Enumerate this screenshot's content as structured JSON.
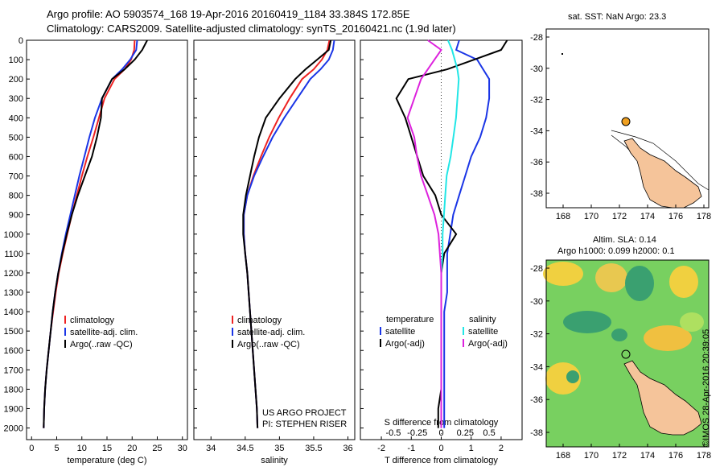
{
  "header": {
    "line1": "Argo profile: AO 5903574_168 19-Apr-2016 20160419_1184 33.384S 172.85E",
    "line2": "Climatology: CARS2009. Satellite-adjusted climatology: synTS_20160421.nc (1.9d later)"
  },
  "colors": {
    "climatology": "#ee2222",
    "satellite": "#1a35e6",
    "argo": "#000000",
    "sal_satellite": "#22e6e6",
    "sal_argo": "#dd22dd",
    "land": "#f5c49a",
    "float_marker": "#f0a020"
  },
  "chart_data": [
    {
      "type": "line",
      "panel": "temperature",
      "xlabel": "temperature (deg C)",
      "ylabel": "",
      "xlim": [
        -1,
        31
      ],
      "ylim": [
        2060,
        0
      ],
      "xticks": [
        0,
        5,
        10,
        15,
        20,
        25,
        30
      ],
      "yticks": [
        0,
        100,
        200,
        300,
        400,
        500,
        600,
        700,
        800,
        900,
        1000,
        1100,
        1200,
        1300,
        1400,
        1500,
        1600,
        1700,
        1800,
        1900,
        2000
      ],
      "legend": [
        "climatology",
        "satellite-adj. clim.",
        "Argo(..raw -QC)"
      ],
      "series": [
        {
          "name": "climatology",
          "color": "climatology",
          "x": [
            20.5,
            20.4,
            19.8,
            18.5,
            16.5,
            14.5,
            13.4,
            12.3,
            11.1,
            10.0,
            9.0,
            8.0,
            7.1,
            6.2,
            5.4,
            4.8,
            4.3,
            3.8,
            3.4,
            3.0,
            2.7,
            2.5,
            2.4
          ],
          "y": [
            0,
            50,
            100,
            150,
            200,
            300,
            400,
            500,
            600,
            700,
            800,
            900,
            1000,
            1100,
            1200,
            1300,
            1400,
            1500,
            1600,
            1700,
            1800,
            1900,
            2000
          ]
        },
        {
          "name": "satellite-adj. clim.",
          "color": "satellite",
          "x": [
            21.0,
            20.8,
            19.6,
            18.0,
            16.0,
            14.0,
            12.6,
            11.5,
            10.5,
            9.5,
            8.6,
            7.7,
            6.8,
            6.0,
            5.3,
            4.7,
            4.2,
            3.8,
            3.4,
            3.0,
            2.7,
            2.5,
            2.4
          ],
          "y": [
            0,
            50,
            100,
            150,
            200,
            300,
            400,
            500,
            600,
            700,
            800,
            900,
            1000,
            1100,
            1200,
            1300,
            1400,
            1500,
            1600,
            1700,
            1800,
            1900,
            2000
          ]
        },
        {
          "name": "Argo(..raw -QC)",
          "color": "argo",
          "x": [
            23.0,
            22.0,
            20.5,
            18.5,
            16.0,
            14.0,
            13.8,
            13.0,
            12.0,
            10.6,
            9.2,
            8.0,
            7.0,
            6.1,
            5.3,
            4.7,
            4.2,
            3.8,
            3.4,
            3.0,
            2.7,
            2.5,
            2.4
          ],
          "y": [
            0,
            50,
            100,
            150,
            200,
            300,
            400,
            500,
            600,
            700,
            800,
            900,
            1000,
            1100,
            1200,
            1300,
            1400,
            1500,
            1600,
            1700,
            1800,
            1900,
            2000
          ]
        }
      ]
    },
    {
      "type": "line",
      "panel": "salinity",
      "xlabel": "salinity",
      "xlim": [
        33.75,
        36.1
      ],
      "ylim": [
        2060,
        0
      ],
      "xticks": [
        34,
        34.5,
        35,
        35.5,
        36
      ],
      "legend": [
        "climatology",
        "satellite-adj. clim.",
        "Argo(..raw -QC)"
      ],
      "annotation": [
        "US ARGO PROJECT",
        "PI: STEPHEN RISER"
      ],
      "series": [
        {
          "name": "climatology",
          "color": "climatology",
          "x": [
            35.73,
            35.7,
            35.62,
            35.5,
            35.33,
            35.15,
            34.99,
            34.85,
            34.73,
            34.62,
            34.53,
            34.48,
            34.48,
            34.5,
            34.53,
            34.55,
            34.57,
            34.59,
            34.61,
            34.63,
            34.65,
            34.67,
            34.68
          ],
          "y": [
            0,
            50,
            100,
            150,
            200,
            300,
            400,
            500,
            600,
            700,
            800,
            900,
            1000,
            1100,
            1200,
            1300,
            1400,
            1500,
            1600,
            1700,
            1800,
            1900,
            2000
          ]
        },
        {
          "name": "satellite-adj. clim.",
          "color": "satellite",
          "x": [
            35.8,
            35.78,
            35.72,
            35.6,
            35.45,
            35.26,
            35.07,
            34.9,
            34.76,
            34.63,
            34.53,
            34.48,
            34.48,
            34.5,
            34.53,
            34.55,
            34.57,
            34.59,
            34.61,
            34.63,
            34.65,
            34.67,
            34.68
          ],
          "y": [
            0,
            50,
            100,
            150,
            200,
            300,
            400,
            500,
            600,
            700,
            800,
            900,
            1000,
            1100,
            1200,
            1300,
            1400,
            1500,
            1600,
            1700,
            1800,
            1900,
            2000
          ]
        },
        {
          "name": "Argo(..raw -QC)",
          "color": "argo",
          "x": [
            35.75,
            35.72,
            35.55,
            35.38,
            35.23,
            35.0,
            34.8,
            34.7,
            34.63,
            34.57,
            34.51,
            34.47,
            34.47,
            34.5,
            34.53,
            34.55,
            34.57,
            34.59,
            34.61,
            34.63,
            34.65,
            34.67,
            34.68
          ],
          "y": [
            0,
            50,
            100,
            150,
            200,
            300,
            400,
            500,
            600,
            700,
            800,
            900,
            1000,
            1100,
            1200,
            1300,
            1400,
            1500,
            1600,
            1700,
            1800,
            1900,
            2000
          ]
        }
      ]
    },
    {
      "type": "line",
      "panel": "differences",
      "xlabel": "T difference from climatology",
      "xlabel_top": "S difference from climatology",
      "xlim": [
        -2.7,
        2.7
      ],
      "ylim": [
        2060,
        0
      ],
      "xticks": [
        -2,
        -1,
        0,
        1,
        2
      ],
      "xtick_labels": [
        "-2",
        "-1",
        "0",
        "1",
        "2"
      ],
      "s_xticks": [
        "-0.5",
        "-0.25",
        "0",
        "0.25",
        "0.5"
      ],
      "legend_left_title": "temperature",
      "legend_right_title": "salinity",
      "legend_left": [
        "satellite",
        "Argo(-adj)"
      ],
      "legend_right": [
        "satellite",
        "Argo(-adj)"
      ],
      "series": [
        {
          "name": "satellite",
          "quantity": "temperature",
          "color": "satellite",
          "x": [
            0.6,
            0.5,
            1.2,
            1.4,
            1.6,
            1.6,
            1.5,
            1.3,
            1.0,
            0.8,
            0.6,
            0.4,
            0.3,
            0.2,
            0.2,
            0.2,
            0.1,
            0.1,
            0.1,
            0.1,
            0.1,
            0.1,
            0.1
          ],
          "y": [
            0,
            50,
            100,
            150,
            200,
            300,
            400,
            500,
            600,
            700,
            800,
            900,
            1000,
            1100,
            1200,
            1300,
            1400,
            1500,
            1600,
            1700,
            1800,
            1900,
            2000
          ]
        },
        {
          "name": "Argo(-adj)",
          "quantity": "temperature",
          "color": "argo",
          "x": [
            2.2,
            2.0,
            1.1,
            0.2,
            -1.1,
            -1.5,
            -1.2,
            -1.0,
            -0.8,
            -0.6,
            -0.2,
            0.0,
            0.5,
            0.1,
            0.0,
            0.0,
            0.0,
            0.0,
            0.0,
            0.0,
            0.0,
            -0.1,
            -0.1
          ],
          "y": [
            0,
            50,
            100,
            150,
            200,
            300,
            400,
            500,
            600,
            700,
            800,
            900,
            1000,
            1100,
            1200,
            1300,
            1400,
            1500,
            1600,
            1700,
            1800,
            1900,
            2000
          ]
        },
        {
          "name": "satellite",
          "quantity": "salinity",
          "color": "sal_satellite",
          "x": [
            0.05,
            0.08,
            0.1,
            0.12,
            0.13,
            0.12,
            0.11,
            0.09,
            0.07,
            0.04,
            0.03,
            0.02,
            0.01,
            0.01,
            0.0,
            0.0,
            0.0,
            0.0,
            0.0,
            0.0,
            0.0,
            0.0,
            0.0
          ],
          "y": [
            0,
            50,
            100,
            150,
            200,
            300,
            400,
            500,
            600,
            700,
            800,
            900,
            1000,
            1100,
            1200,
            1300,
            1400,
            1500,
            1600,
            1700,
            1800,
            1900,
            2000
          ]
        },
        {
          "name": "Argo(-adj)",
          "quantity": "salinity",
          "color": "sal_argo",
          "x": [
            -0.1,
            0.0,
            -0.05,
            -0.1,
            -0.15,
            -0.2,
            -0.25,
            -0.2,
            -0.18,
            -0.15,
            -0.1,
            -0.05,
            -0.02,
            -0.01,
            0.0,
            0.0,
            0.0,
            0.0,
            0.0,
            0.0,
            0.0,
            0.0,
            0.0
          ],
          "y": [
            0,
            50,
            100,
            150,
            200,
            300,
            400,
            500,
            600,
            700,
            800,
            900,
            1000,
            1100,
            1200,
            1300,
            1400,
            1500,
            1600,
            1700,
            1800,
            1900,
            2000
          ]
        }
      ]
    }
  ],
  "map_top": {
    "title": "sat. SST: NaN Argo: 23.3",
    "lon_ticks": [
      "168",
      "170",
      "172",
      "174",
      "176",
      "178"
    ],
    "lat_ticks": [
      "-28",
      "-30",
      "-32",
      "-34",
      "-36",
      "-38"
    ],
    "float_lon": 172.85,
    "float_lat": -33.384
  },
  "map_bottom": {
    "title1": "Altim. SLA: 0.14",
    "title2": "Argo h1000: 0.099 h2000: 0.1",
    "lon_ticks": [
      "168",
      "170",
      "172",
      "174",
      "176",
      "178"
    ],
    "lat_ticks": [
      "-28",
      "-30",
      "-32",
      "-34",
      "-36",
      "-38"
    ],
    "float_lon": 172.85,
    "float_lat": -33.384
  },
  "watermark": "©IMOS 28-Apr-2016 20:39:05"
}
